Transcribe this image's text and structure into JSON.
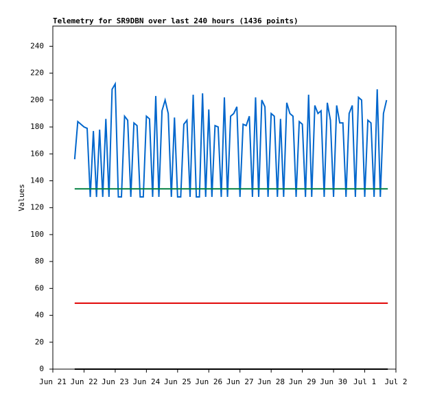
{
  "chart_data": {
    "type": "line",
    "title": "Telemetry for SR9DBN over last 240 hours (1436 points)",
    "y_label": "Values",
    "xlim": [
      0,
      11
    ],
    "xticks": [
      {
        "value": 0,
        "label": "Jun 21"
      },
      {
        "value": 1,
        "label": "Jun 22"
      },
      {
        "value": 2,
        "label": "Jun 23"
      },
      {
        "value": 3,
        "label": "Jun 24"
      },
      {
        "value": 4,
        "label": "Jun 25"
      },
      {
        "value": 5,
        "label": "Jun 26"
      },
      {
        "value": 6,
        "label": "Jun 27"
      },
      {
        "value": 7,
        "label": "Jun 28"
      },
      {
        "value": 8,
        "label": "Jun 29"
      },
      {
        "value": 9,
        "label": "Jun 30"
      },
      {
        "value": 10,
        "label": "Jul 1"
      },
      {
        "value": 11,
        "label": "Jul 2"
      }
    ],
    "ylim": [
      0,
      255
    ],
    "yticks": [
      0,
      20,
      40,
      60,
      80,
      100,
      120,
      140,
      160,
      180,
      200,
      220,
      240
    ],
    "series": [
      {
        "color": "#0066cc",
        "x": [
          0.7,
          0.8,
          0.9,
          1.0,
          1.1,
          1.2,
          1.3,
          1.4,
          1.5,
          1.6,
          1.7,
          1.8,
          1.9,
          2.0,
          2.1,
          2.2,
          2.3,
          2.4,
          2.5,
          2.6,
          2.7,
          2.8,
          2.9,
          3.0,
          3.1,
          3.2,
          3.3,
          3.4,
          3.5,
          3.6,
          3.7,
          3.8,
          3.9,
          4.0,
          4.1,
          4.2,
          4.3,
          4.4,
          4.5,
          4.6,
          4.7,
          4.8,
          4.9,
          5.0,
          5.1,
          5.2,
          5.3,
          5.4,
          5.5,
          5.6,
          5.7,
          5.8,
          5.9,
          6.0,
          6.1,
          6.2,
          6.3,
          6.4,
          6.5,
          6.6,
          6.7,
          6.8,
          6.9,
          7.0,
          7.1,
          7.2,
          7.3,
          7.4,
          7.5,
          7.6,
          7.7,
          7.8,
          7.9,
          8.0,
          8.1,
          8.2,
          8.3,
          8.4,
          8.5,
          8.6,
          8.7,
          8.8,
          8.9,
          9.0,
          9.1,
          9.2,
          9.3,
          9.4,
          9.5,
          9.6,
          9.7,
          9.8,
          9.9,
          10.0,
          10.1,
          10.2,
          10.3,
          10.4,
          10.5,
          10.6,
          10.7
        ],
        "values": [
          156,
          184,
          182,
          180,
          179,
          128,
          177,
          128,
          178,
          128,
          186,
          128,
          208,
          212,
          128,
          128,
          188,
          185,
          128,
          183,
          181,
          128,
          128,
          188,
          186,
          128,
          203,
          128,
          192,
          200,
          190,
          128,
          187,
          128,
          128,
          182,
          185,
          128,
          204,
          128,
          128,
          205,
          128,
          193,
          128,
          181,
          180,
          128,
          202,
          128,
          188,
          190,
          195,
          128,
          182,
          181,
          188,
          128,
          202,
          128,
          200,
          195,
          128,
          190,
          188,
          128,
          186,
          128,
          198,
          190,
          188,
          128,
          184,
          182,
          128,
          204,
          128,
          196,
          190,
          192,
          128,
          198,
          185,
          128,
          196,
          183,
          183,
          128,
          190,
          196,
          128,
          202,
          200,
          128,
          185,
          183,
          128,
          208,
          128,
          190,
          200
        ]
      },
      {
        "color": "#008040",
        "x": [
          0.7,
          10.74
        ],
        "values": [
          134,
          134
        ]
      },
      {
        "color": "#e00000",
        "x": [
          0.7,
          10.74
        ],
        "values": [
          49,
          49
        ]
      },
      {
        "color": "#000000",
        "x": [
          0.7,
          10.74
        ],
        "values": [
          0,
          0
        ]
      }
    ]
  }
}
